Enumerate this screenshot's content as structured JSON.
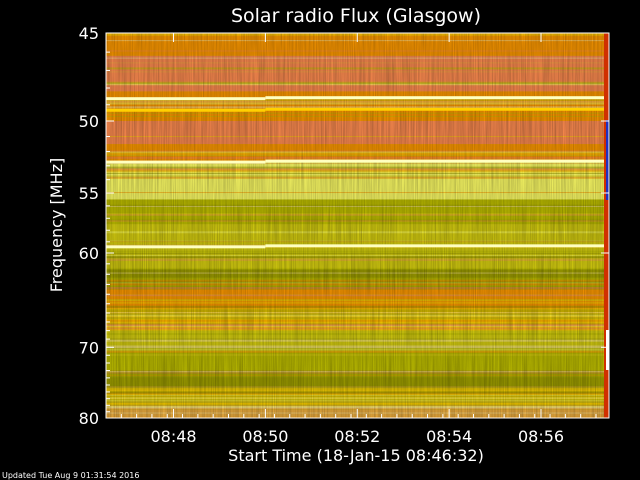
{
  "chart_data": {
    "type": "heatmap",
    "title": "Solar radio Flux (Glasgow)",
    "xlabel": "Start Time (18-Jan-15 08:46:32)",
    "ylabel": "Frequency [MHz]",
    "footer": "Updated Tue Aug  9 01:31:54 2016",
    "x_ticks": [
      "08:48",
      "08:50",
      "08:52",
      "08:54",
      "08:56"
    ],
    "x_tick_minutes": [
      1.47,
      3.47,
      5.47,
      7.47,
      9.47
    ],
    "xlim_minutes": [
      0,
      10.95
    ],
    "y_ticks": [
      45,
      50,
      55,
      60,
      70,
      80
    ],
    "ylim": [
      45,
      80
    ],
    "y_scale": "reciprocal",
    "bright_lines_mhz": [
      48.6,
      49.3,
      52.7,
      59.4
    ],
    "colormap": [
      "#ffe9a0",
      "#ffff66",
      "#ffd000",
      "#ff9a00",
      "#ff8c50",
      "#f0b040",
      "#c0c000",
      "#d8d010",
      "#a0a000"
    ]
  }
}
